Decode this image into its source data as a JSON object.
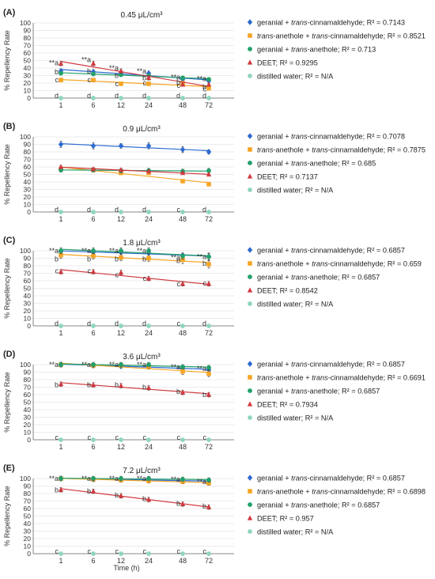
{
  "x_label": "Time (h)",
  "y_label": "% Repellency Rate",
  "chart_data": [
    {
      "type": "scatter",
      "panel_label": "(A)",
      "title": "0.45 μL/cm³",
      "categories": [
        "1",
        "6",
        "12",
        "24",
        "48",
        "72"
      ],
      "ylim": [
        0,
        100
      ],
      "yticks": [
        0,
        10,
        20,
        30,
        40,
        50,
        60,
        70,
        80,
        90,
        100
      ],
      "series": [
        {
          "name": "geranial + trans-cinnamaldehyde; R² = 0.7143",
          "marker": "diamond",
          "color": "#2e6bd1",
          "values": [
            36,
            35,
            34,
            33,
            25,
            23
          ],
          "errors": [
            3,
            3,
            3,
            3,
            2,
            2
          ]
        },
        {
          "name": "trans-anethole + trans-cinnamaldehyde; R² = 0.8521",
          "marker": "square",
          "color": "#f5a524",
          "values": [
            24,
            24,
            19,
            19,
            20,
            13
          ],
          "errors": [
            2,
            2,
            2,
            2,
            2,
            2
          ]
        },
        {
          "name": "geranial + trans-anethole; R² = 0.713",
          "marker": "circle",
          "color": "#22a06b",
          "values": [
            33,
            32,
            31,
            30,
            27,
            25
          ],
          "errors": [
            2,
            2,
            2,
            2,
            2,
            2
          ]
        },
        {
          "name": "DEET; R² = 0.9295",
          "marker": "triangle",
          "color": "#d0393f",
          "values": [
            46,
            46,
            36,
            27,
            18,
            18
          ],
          "errors": [
            3,
            3,
            3,
            3,
            2,
            2
          ]
        },
        {
          "name": "distilled water; R² = N/A",
          "marker": "circle",
          "color": "#8fd5c0",
          "values": [
            0,
            0,
            0,
            0,
            0,
            0
          ],
          "errors": [
            0,
            0,
            0,
            0,
            0,
            0
          ]
        }
      ],
      "annotations": [
        {
          "x": "1",
          "y": 47,
          "text": "**a"
        },
        {
          "x": "6",
          "y": 51,
          "text": "**a"
        },
        {
          "x": "12",
          "y": 40,
          "text": "**a"
        },
        {
          "x": "24",
          "y": 36,
          "text": "**a"
        },
        {
          "x": "48",
          "y": 28,
          "text": "**a"
        },
        {
          "x": "72",
          "y": 26,
          "text": "**a"
        },
        {
          "x": "1",
          "y": 35,
          "text": "b"
        },
        {
          "x": "6",
          "y": 36,
          "text": "b"
        },
        {
          "x": "12",
          "y": 30,
          "text": "b"
        },
        {
          "x": "24",
          "y": 27,
          "text": "b"
        },
        {
          "x": "48",
          "y": 21,
          "text": "b"
        },
        {
          "x": "72",
          "y": 15,
          "text": "b"
        },
        {
          "x": "1",
          "y": 24,
          "text": "c"
        },
        {
          "x": "6",
          "y": 24,
          "text": "c"
        },
        {
          "x": "12",
          "y": 19,
          "text": "c"
        },
        {
          "x": "24",
          "y": 20,
          "text": "c"
        },
        {
          "x": "48",
          "y": 17,
          "text": "c"
        },
        {
          "x": "72",
          "y": 12,
          "text": "c"
        },
        {
          "x": "1",
          "y": 3,
          "text": "d"
        },
        {
          "x": "6",
          "y": 3,
          "text": "d"
        },
        {
          "x": "12",
          "y": 3,
          "text": "d"
        },
        {
          "x": "24",
          "y": 3,
          "text": "d"
        },
        {
          "x": "48",
          "y": 3,
          "text": "d"
        },
        {
          "x": "72",
          "y": 3,
          "text": "d"
        }
      ]
    },
    {
      "type": "scatter",
      "panel_label": "(B)",
      "title": "0.9 μL/cm³",
      "categories": [
        "1",
        "6",
        "12",
        "24",
        "48",
        "72"
      ],
      "ylim": [
        0,
        100
      ],
      "yticks": [
        0,
        10,
        20,
        30,
        40,
        50,
        60,
        70,
        80,
        90,
        100
      ],
      "series": [
        {
          "name": "geranial + trans-cinnamaldehyde; R² = 0.7078",
          "marker": "diamond",
          "color": "#2e6bd1",
          "values": [
            90,
            88,
            88,
            88,
            83,
            80
          ],
          "errors": [
            4,
            4,
            3,
            4,
            4,
            3
          ]
        },
        {
          "name": "trans-anethole + trans-cinnamaldehyde; R² = 0.7875",
          "marker": "square",
          "color": "#f5a524",
          "values": [
            57,
            56,
            52,
            52,
            41,
            37
          ],
          "errors": [
            2,
            2,
            2,
            2,
            2,
            2
          ]
        },
        {
          "name": "geranial + trans-anethole; R² = 0.685",
          "marker": "circle",
          "color": "#22a06b",
          "values": [
            56,
            56,
            55,
            55,
            54,
            55
          ],
          "errors": [
            3,
            3,
            3,
            3,
            3,
            3
          ]
        },
        {
          "name": "DEET; R² = 0.7137",
          "marker": "triangle",
          "color": "#d0393f",
          "values": [
            60,
            57,
            56,
            54,
            52,
            50
          ],
          "errors": [
            2,
            2,
            2,
            2,
            2,
            2
          ]
        },
        {
          "name": "distilled water; R² = N/A",
          "marker": "circle",
          "color": "#8fd5c0",
          "values": [
            0,
            0,
            0,
            0,
            0,
            0
          ],
          "errors": [
            0,
            0,
            0,
            0,
            0,
            0
          ]
        }
      ],
      "annotations": [
        {
          "x": "1",
          "y": 3,
          "text": "d"
        },
        {
          "x": "6",
          "y": 3,
          "text": "d"
        },
        {
          "x": "12",
          "y": 3,
          "text": "d"
        },
        {
          "x": "24",
          "y": 3,
          "text": "d"
        },
        {
          "x": "48",
          "y": 3,
          "text": "c"
        },
        {
          "x": "72",
          "y": 3,
          "text": "d"
        }
      ]
    },
    {
      "type": "scatter",
      "panel_label": "(C)",
      "title": "1.8 μL/cm³",
      "categories": [
        "1",
        "6",
        "12",
        "24",
        "48",
        "72"
      ],
      "ylim": [
        0,
        100
      ],
      "yticks": [
        0,
        10,
        20,
        30,
        40,
        50,
        60,
        70,
        80,
        90,
        100
      ],
      "series": [
        {
          "name": "geranial + trans-cinnamaldehyde; R² = 0.6857",
          "marker": "diamond",
          "color": "#2e6bd1",
          "values": [
            99,
            98,
            98,
            97,
            94,
            92
          ],
          "errors": [
            3,
            3,
            3,
            3,
            3,
            4
          ]
        },
        {
          "name": "trans-anethole + trans-cinnamaldehyde; R² = 0.659",
          "marker": "square",
          "color": "#f5a524",
          "values": [
            94,
            93,
            91,
            90,
            88,
            82
          ],
          "errors": [
            4,
            4,
            4,
            4,
            5,
            5
          ]
        },
        {
          "name": "geranial + trans-anethole; R² = 0.6857",
          "marker": "circle",
          "color": "#22a06b",
          "values": [
            100,
            100,
            100,
            100,
            93,
            92
          ],
          "errors": [
            4,
            4,
            4,
            4,
            4,
            5
          ]
        },
        {
          "name": "DEET; R² = 0.8542",
          "marker": "triangle",
          "color": "#d0393f",
          "values": [
            72,
            72,
            71,
            63,
            56,
            56
          ],
          "errors": [
            3,
            3,
            3,
            3,
            3,
            3
          ]
        },
        {
          "name": "distilled water; R² = N/A",
          "marker": "circle",
          "color": "#8fd5c0",
          "values": [
            0,
            0,
            0,
            0,
            0,
            0
          ],
          "errors": [
            0,
            0,
            0,
            0,
            0,
            0
          ]
        }
      ],
      "annotations": [
        {
          "x": "1",
          "y": 100,
          "text": "**a"
        },
        {
          "x": "6",
          "y": 100,
          "text": "**a"
        },
        {
          "x": "12",
          "y": 100,
          "text": "**a"
        },
        {
          "x": "24",
          "y": 100,
          "text": "**a"
        },
        {
          "x": "48",
          "y": 91,
          "text": "**a"
        },
        {
          "x": "72",
          "y": 92,
          "text": "**a"
        },
        {
          "x": "1",
          "y": 89,
          "text": "b"
        },
        {
          "x": "6",
          "y": 89,
          "text": "b"
        },
        {
          "x": "12",
          "y": 89,
          "text": "b"
        },
        {
          "x": "24",
          "y": 89,
          "text": "b"
        },
        {
          "x": "48",
          "y": 87,
          "text": "b"
        },
        {
          "x": "72",
          "y": 83,
          "text": "b"
        },
        {
          "x": "1",
          "y": 73,
          "text": "c"
        },
        {
          "x": "6",
          "y": 73,
          "text": "c"
        },
        {
          "x": "12",
          "y": 68,
          "text": "c"
        },
        {
          "x": "24",
          "y": 63,
          "text": "c"
        },
        {
          "x": "48",
          "y": 56,
          "text": "c"
        },
        {
          "x": "72",
          "y": 57,
          "text": "c"
        },
        {
          "x": "1",
          "y": 3,
          "text": "d"
        },
        {
          "x": "6",
          "y": 3,
          "text": "d"
        },
        {
          "x": "12",
          "y": 3,
          "text": "d"
        },
        {
          "x": "24",
          "y": 3,
          "text": "d"
        },
        {
          "x": "48",
          "y": 3,
          "text": "c"
        },
        {
          "x": "72",
          "y": 3,
          "text": "d"
        }
      ]
    },
    {
      "type": "scatter",
      "panel_label": "(D)",
      "title": "3.6 μL/cm³",
      "categories": [
        "1",
        "6",
        "12",
        "24",
        "48",
        "72"
      ],
      "ylim": [
        0,
        100
      ],
      "yticks": [
        0,
        10,
        20,
        30,
        40,
        50,
        60,
        70,
        80,
        90,
        100
      ],
      "series": [
        {
          "name": "geranial + trans-cinnamaldehyde; R² = 0.6857",
          "marker": "diamond",
          "color": "#2e6bd1",
          "values": [
            100,
            99,
            98,
            98,
            95,
            93
          ],
          "errors": [
            3,
            3,
            3,
            3,
            3,
            3
          ]
        },
        {
          "name": "trans-anethole + trans-cinnamaldehyde; R² = 0.6691",
          "marker": "square",
          "color": "#f5a524",
          "values": [
            100,
            99,
            99,
            97,
            91,
            88
          ],
          "errors": [
            3,
            3,
            3,
            3,
            4,
            4
          ]
        },
        {
          "name": "geranial + trans-anethole; R² = 0.6857",
          "marker": "circle",
          "color": "#22a06b",
          "values": [
            100,
            100,
            100,
            100,
            97,
            96
          ],
          "errors": [
            3,
            3,
            3,
            3,
            3,
            3
          ]
        },
        {
          "name": "DEET; R² = 0.7934",
          "marker": "triangle",
          "color": "#d0393f",
          "values": [
            74,
            73,
            72,
            69,
            63,
            60
          ],
          "errors": [
            3,
            3,
            3,
            3,
            3,
            3
          ]
        },
        {
          "name": "distilled water; R² = N/A",
          "marker": "circle",
          "color": "#8fd5c0",
          "values": [
            0,
            0,
            0,
            0,
            0,
            0
          ],
          "errors": [
            0,
            0,
            0,
            0,
            0,
            0
          ]
        }
      ],
      "annotations": [
        {
          "x": "1",
          "y": 100,
          "text": "**a"
        },
        {
          "x": "6",
          "y": 100,
          "text": "**a"
        },
        {
          "x": "12",
          "y": 100,
          "text": "**a"
        },
        {
          "x": "24",
          "y": 100,
          "text": "**a"
        },
        {
          "x": "48",
          "y": 97,
          "text": "**a"
        },
        {
          "x": "72",
          "y": 95,
          "text": "**a"
        },
        {
          "x": "1",
          "y": 73,
          "text": "b"
        },
        {
          "x": "6",
          "y": 73,
          "text": "b"
        },
        {
          "x": "12",
          "y": 73,
          "text": "b"
        },
        {
          "x": "24",
          "y": 70,
          "text": "b"
        },
        {
          "x": "48",
          "y": 64,
          "text": "b"
        },
        {
          "x": "72",
          "y": 60,
          "text": "b"
        },
        {
          "x": "1",
          "y": 3,
          "text": "c"
        },
        {
          "x": "6",
          "y": 3,
          "text": "c"
        },
        {
          "x": "12",
          "y": 3,
          "text": "c"
        },
        {
          "x": "24",
          "y": 3,
          "text": "c"
        },
        {
          "x": "48",
          "y": 3,
          "text": "c"
        },
        {
          "x": "72",
          "y": 3,
          "text": "c"
        }
      ]
    },
    {
      "type": "scatter",
      "panel_label": "(E)",
      "title": "7.2 μL/cm³",
      "categories": [
        "1",
        "6",
        "12",
        "24",
        "48",
        "72"
      ],
      "ylim": [
        0,
        100
      ],
      "yticks": [
        0,
        10,
        20,
        30,
        40,
        50,
        60,
        70,
        80,
        90,
        100
      ],
      "series": [
        {
          "name": "geranial + trans-cinnamaldehyde; R² = 0.6857",
          "marker": "diamond",
          "color": "#2e6bd1",
          "values": [
            100,
            99,
            99,
            99,
            97,
            96
          ],
          "errors": [
            2,
            2,
            2,
            2,
            2,
            2
          ]
        },
        {
          "name": "trans-anethole + trans-cinnamaldehyde; R² = 0.6898",
          "marker": "square",
          "color": "#f5a524",
          "values": [
            100,
            99,
            98,
            97,
            96,
            94
          ],
          "errors": [
            3,
            3,
            3,
            3,
            3,
            3
          ]
        },
        {
          "name": "geranial + trans-anethole; R² = 0.6857",
          "marker": "circle",
          "color": "#22a06b",
          "values": [
            100,
            100,
            100,
            100,
            99,
            98
          ],
          "errors": [
            3,
            3,
            3,
            3,
            3,
            3
          ]
        },
        {
          "name": "DEET; R² = 0.957",
          "marker": "triangle",
          "color": "#d0393f",
          "values": [
            85,
            83,
            77,
            72,
            66,
            62
          ],
          "errors": [
            3,
            3,
            3,
            3,
            3,
            3
          ]
        },
        {
          "name": "distilled water; R² = N/A",
          "marker": "circle",
          "color": "#8fd5c0",
          "values": [
            0,
            0,
            0,
            0,
            0,
            0
          ],
          "errors": [
            0,
            0,
            0,
            0,
            0,
            0
          ]
        }
      ],
      "annotations": [
        {
          "x": "1",
          "y": 100,
          "text": "**a"
        },
        {
          "x": "6",
          "y": 100,
          "text": "**a"
        },
        {
          "x": "12",
          "y": 100,
          "text": "**a"
        },
        {
          "x": "24",
          "y": 100,
          "text": "**a"
        },
        {
          "x": "48",
          "y": 99,
          "text": "**a"
        },
        {
          "x": "72",
          "y": 96,
          "text": "**a"
        },
        {
          "x": "1",
          "y": 85,
          "text": "b"
        },
        {
          "x": "6",
          "y": 83,
          "text": "b"
        },
        {
          "x": "12",
          "y": 78,
          "text": "b"
        },
        {
          "x": "24",
          "y": 73,
          "text": "b"
        },
        {
          "x": "48",
          "y": 67,
          "text": "b"
        },
        {
          "x": "72",
          "y": 63,
          "text": "b"
        },
        {
          "x": "1",
          "y": 3,
          "text": "c"
        },
        {
          "x": "6",
          "y": 3,
          "text": "c"
        },
        {
          "x": "12",
          "y": 3,
          "text": "c"
        },
        {
          "x": "24",
          "y": 3,
          "text": "c"
        },
        {
          "x": "48",
          "y": 3,
          "text": "c"
        },
        {
          "x": "72",
          "y": 3,
          "text": "c"
        }
      ]
    }
  ]
}
